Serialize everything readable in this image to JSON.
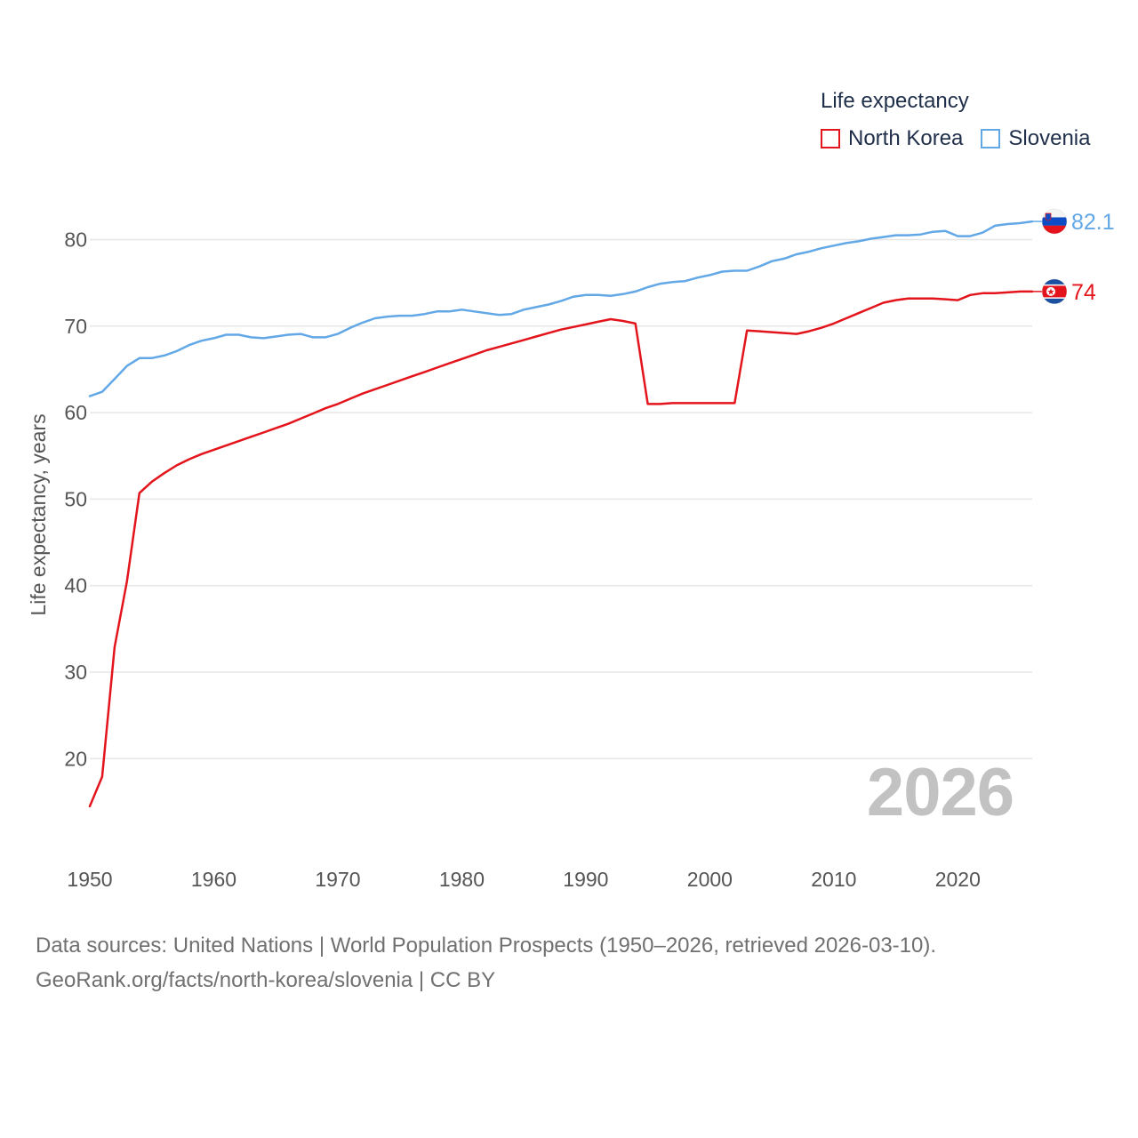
{
  "legend": {
    "title": "Life expectancy",
    "items": [
      {
        "label": "North Korea",
        "color": "#e3141b"
      },
      {
        "label": "Slovenia",
        "color": "#63a8e6"
      }
    ]
  },
  "year_watermark": "2026",
  "source": {
    "line1": "Data sources: United Nations | World Population Prospects (1950–2026, retrieved 2026-03-10).",
    "line2": "GeoRank.org/facts/north-korea/slovenia | CC BY"
  },
  "chart_data": {
    "type": "line",
    "title": "Life expectancy",
    "xlabel": "",
    "ylabel": "Life expectancy, years",
    "xlim": [
      1950,
      2026
    ],
    "ylim": [
      10,
      85
    ],
    "grid": true,
    "legend_position": "top-right",
    "x_ticks": [
      1950,
      1960,
      1970,
      1980,
      1990,
      2000,
      2010,
      2020
    ],
    "y_ticks": [
      20,
      30,
      40,
      50,
      60,
      70,
      80
    ],
    "x": [
      1950,
      1951,
      1952,
      1953,
      1954,
      1955,
      1956,
      1957,
      1958,
      1959,
      1960,
      1961,
      1962,
      1963,
      1964,
      1965,
      1966,
      1967,
      1968,
      1969,
      1970,
      1971,
      1972,
      1973,
      1974,
      1975,
      1976,
      1977,
      1978,
      1979,
      1980,
      1981,
      1982,
      1983,
      1984,
      1985,
      1986,
      1987,
      1988,
      1989,
      1990,
      1991,
      1992,
      1993,
      1994,
      1995,
      1996,
      1997,
      1998,
      1999,
      2000,
      2001,
      2002,
      2003,
      2004,
      2005,
      2006,
      2007,
      2008,
      2009,
      2010,
      2011,
      2012,
      2013,
      2014,
      2015,
      2016,
      2017,
      2018,
      2019,
      2020,
      2021,
      2022,
      2023,
      2024,
      2025,
      2026
    ],
    "series": [
      {
        "name": "North Korea",
        "color": "#e3141b",
        "end_label": "74",
        "flag": "north-korea-flag-icon",
        "values": [
          14.5,
          17.9,
          32.9,
          40.5,
          50.7,
          52.0,
          53.0,
          53.9,
          54.6,
          55.2,
          55.7,
          56.2,
          56.7,
          57.2,
          57.7,
          58.2,
          58.7,
          59.3,
          59.9,
          60.5,
          61.0,
          61.6,
          62.2,
          62.7,
          63.2,
          63.7,
          64.2,
          64.7,
          65.2,
          65.7,
          66.2,
          66.7,
          67.2,
          67.6,
          68.0,
          68.4,
          68.8,
          69.2,
          69.6,
          69.9,
          70.2,
          70.5,
          70.8,
          70.6,
          70.3,
          61.0,
          61.0,
          61.1,
          61.1,
          61.1,
          61.1,
          61.1,
          61.1,
          69.5,
          69.4,
          69.3,
          69.2,
          69.1,
          69.4,
          69.8,
          70.3,
          70.9,
          71.5,
          72.1,
          72.7,
          73.0,
          73.2,
          73.2,
          73.2,
          73.1,
          73.0,
          73.6,
          73.8,
          73.8,
          73.9,
          74.0,
          74.0
        ]
      },
      {
        "name": "Slovenia",
        "color": "#63a8e6",
        "end_label": "82.1",
        "flag": "slovenia-flag-icon",
        "values": [
          61.9,
          62.4,
          63.9,
          65.4,
          66.3,
          66.3,
          66.6,
          67.1,
          67.8,
          68.3,
          68.6,
          69.0,
          69.0,
          68.7,
          68.6,
          68.8,
          69.0,
          69.1,
          68.7,
          68.7,
          69.1,
          69.8,
          70.4,
          70.9,
          71.1,
          71.2,
          71.2,
          71.4,
          71.7,
          71.7,
          71.9,
          71.7,
          71.5,
          71.3,
          71.4,
          71.9,
          72.2,
          72.5,
          72.9,
          73.4,
          73.6,
          73.6,
          73.5,
          73.7,
          74.0,
          74.5,
          74.9,
          75.1,
          75.2,
          75.6,
          75.9,
          76.3,
          76.4,
          76.4,
          76.9,
          77.5,
          77.8,
          78.3,
          78.6,
          79.0,
          79.3,
          79.6,
          79.8,
          80.1,
          80.3,
          80.5,
          80.5,
          80.6,
          80.9,
          81.0,
          80.4,
          80.4,
          80.8,
          81.6,
          81.8,
          81.9,
          82.1
        ]
      }
    ]
  }
}
